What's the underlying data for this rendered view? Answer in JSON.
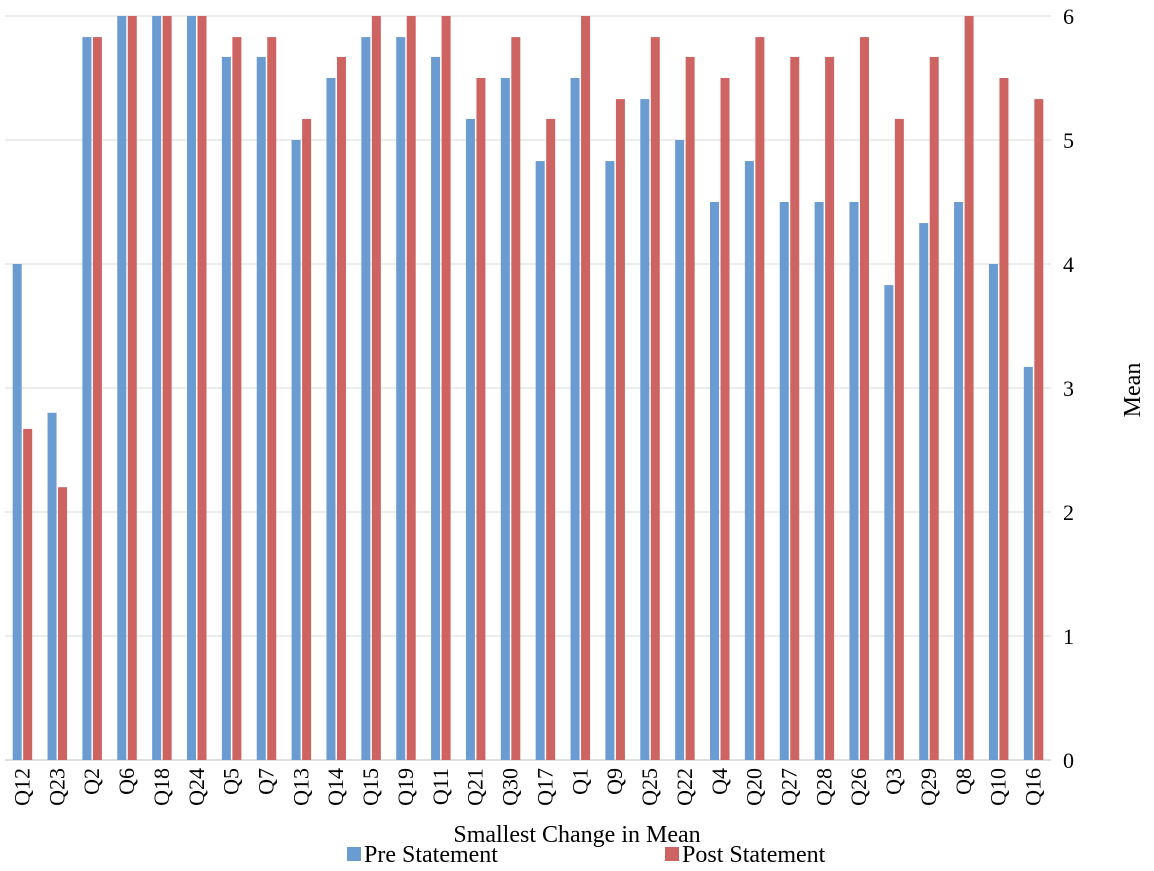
{
  "chart_data": {
    "type": "bar",
    "xlabel": "Smallest Change in Mean",
    "ylabel": "Mean",
    "ylim": [
      0,
      6
    ],
    "yticks": [
      0,
      1,
      2,
      3,
      4,
      5,
      6
    ],
    "y_axis_side": "right",
    "grid": true,
    "legend_position": "bottom",
    "categories": [
      "Q12",
      "Q23",
      "Q2",
      "Q6",
      "Q18",
      "Q24",
      "Q5",
      "Q7",
      "Q13",
      "Q14",
      "Q15",
      "Q19",
      "Q11",
      "Q21",
      "Q30",
      "Q17",
      "Q1",
      "Q9",
      "Q25",
      "Q22",
      "Q4",
      "Q20",
      "Q27",
      "Q28",
      "Q26",
      "Q3",
      "Q29",
      "Q8",
      "Q10",
      "Q16"
    ],
    "series": [
      {
        "name": "Pre Statement",
        "color": "#6a9bd1",
        "values": [
          4.0,
          2.8,
          5.83,
          6.0,
          6.0,
          6.0,
          5.67,
          5.67,
          5.0,
          5.5,
          5.83,
          5.83,
          5.67,
          5.17,
          5.5,
          4.83,
          5.5,
          4.83,
          5.33,
          5.0,
          4.5,
          4.83,
          4.5,
          4.5,
          4.5,
          3.83,
          4.33,
          4.5,
          4.0,
          3.17
        ]
      },
      {
        "name": "Post Statement",
        "color": "#cd6461",
        "values": [
          2.67,
          2.2,
          5.83,
          6.0,
          6.0,
          6.0,
          5.83,
          5.83,
          5.17,
          5.67,
          6.0,
          6.0,
          6.0,
          5.5,
          5.83,
          5.17,
          6.0,
          5.33,
          5.83,
          5.67,
          5.5,
          5.83,
          5.67,
          5.67,
          5.83,
          5.17,
          5.67,
          6.0,
          5.5,
          5.33
        ]
      }
    ]
  }
}
